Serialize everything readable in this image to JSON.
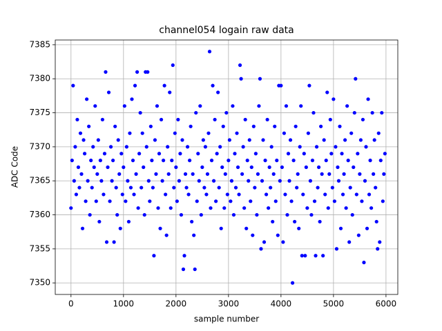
{
  "chart_data": {
    "type": "scatter",
    "title": "channel054 logain raw data",
    "xlabel": "sample number",
    "ylabel": "ADC Code",
    "xlim": [
      -300,
      6225
    ],
    "ylim": [
      7348.3,
      7385.7
    ],
    "xticks": [
      0,
      1000,
      2000,
      3000,
      4000,
      5000,
      6000
    ],
    "yticks": [
      7350,
      7355,
      7360,
      7365,
      7370,
      7375,
      7380,
      7385
    ],
    "grid": true,
    "series": [
      {
        "color": "#0000ff",
        "x": [
          0,
          20,
          40,
          60,
          80,
          100,
          120,
          140,
          160,
          180,
          200,
          220,
          240,
          260,
          280,
          300,
          320,
          340,
          360,
          380,
          400,
          420,
          440,
          460,
          480,
          500,
          520,
          540,
          560,
          580,
          600,
          620,
          640,
          660,
          680,
          700,
          720,
          740,
          760,
          780,
          800,
          820,
          840,
          860,
          880,
          900,
          920,
          940,
          960,
          980,
          1000,
          1020,
          1040,
          1060,
          1080,
          1100,
          1120,
          1140,
          1160,
          1180,
          1200,
          1220,
          1240,
          1260,
          1280,
          1300,
          1320,
          1340,
          1360,
          1380,
          1400,
          1420,
          1440,
          1460,
          1480,
          1500,
          1520,
          1540,
          1560,
          1580,
          1600,
          1620,
          1640,
          1660,
          1680,
          1700,
          1720,
          1740,
          1760,
          1780,
          1800,
          1820,
          1840,
          1860,
          1880,
          1900,
          1920,
          1940,
          1960,
          1980,
          2000,
          2020,
          2040,
          2060,
          2080,
          2100,
          2120,
          2140,
          2160,
          2180,
          2200,
          2220,
          2240,
          2260,
          2280,
          2300,
          2320,
          2340,
          2360,
          2380,
          2400,
          2420,
          2440,
          2460,
          2480,
          2500,
          2520,
          2540,
          2560,
          2580,
          2600,
          2620,
          2640,
          2660,
          2680,
          2700,
          2720,
          2740,
          2760,
          2780,
          2800,
          2820,
          2840,
          2860,
          2880,
          2900,
          2920,
          2940,
          2960,
          2980,
          3000,
          3020,
          3040,
          3060,
          3080,
          3100,
          3120,
          3140,
          3160,
          3180,
          3200,
          3220,
          3240,
          3260,
          3280,
          3300,
          3320,
          3340,
          3360,
          3380,
          3400,
          3420,
          3440,
          3460,
          3480,
          3500,
          3520,
          3540,
          3560,
          3580,
          3600,
          3620,
          3640,
          3660,
          3680,
          3700,
          3720,
          3740,
          3760,
          3780,
          3800,
          3820,
          3840,
          3860,
          3880,
          3900,
          3920,
          3940,
          3960,
          3980,
          4000,
          4020,
          4040,
          4060,
          4080,
          4100,
          4120,
          4140,
          4160,
          4180,
          4200,
          4220,
          4240,
          4260,
          4280,
          4300,
          4320,
          4340,
          4360,
          4380,
          4400,
          4420,
          4440,
          4460,
          4480,
          4500,
          4520,
          4540,
          4560,
          4580,
          4600,
          4620,
          4640,
          4660,
          4680,
          4700,
          4720,
          4740,
          4760,
          4780,
          4800,
          4820,
          4840,
          4860,
          4880,
          4900,
          4920,
          4940,
          4960,
          4980,
          5000,
          5020,
          5040,
          5060,
          5080,
          5100,
          5120,
          5140,
          5160,
          5180,
          5200,
          5220,
          5240,
          5260,
          5280,
          5300,
          5320,
          5340,
          5360,
          5380,
          5400,
          5420,
          5440,
          5460,
          5480,
          5500,
          5520,
          5540,
          5560,
          5580,
          5600,
          5620,
          5640,
          5660,
          5680,
          5700,
          5720,
          5740,
          5760,
          5780,
          5800,
          5820,
          5840,
          5860,
          5880,
          5900,
          5920,
          5940,
          5960,
          5980
        ],
        "values": [
          7361,
          7368,
          7379,
          7365,
          7370,
          7363,
          7374,
          7367,
          7364,
          7372,
          7366,
          7358,
          7371,
          7369,
          7362,
          7377,
          7365,
          7373,
          7360,
          7368,
          7364,
          7370,
          7367,
          7376,
          7362,
          7366,
          7371,
          7359,
          7368,
          7365,
          7374,
          7363,
          7369,
          7381,
          7356,
          7367,
          7378,
          7362,
          7370,
          7365,
          7368,
          7356,
          7373,
          7364,
          7360,
          7371,
          7366,
          7358,
          7369,
          7363,
          7367,
          7376,
          7362,
          7370,
          7365,
          7359,
          7372,
          7364,
          7377,
          7368,
          7363,
          7379,
          7366,
          7381,
          7361,
          7369,
          7375,
          7364,
          7372,
          7367,
          7360,
          7381,
          7370,
          7381,
          7365,
          7362,
          7373,
          7368,
          7364,
          7354,
          7371,
          7366,
          7376,
          7361,
          7369,
          7358,
          7374,
          7365,
          7368,
          7379,
          7363,
          7357,
          7370,
          7366,
          7378,
          7361,
          7368,
          7382,
          7364,
          7372,
          7367,
          7362,
          7374,
          7365,
          7369,
          7360,
          7371,
          7352,
          7354,
          7366,
          7364,
          7370,
          7363,
          7368,
          7373,
          7359,
          7366,
          7357,
          7352,
          7375,
          7362,
          7369,
          7365,
          7376,
          7360,
          7367,
          7371,
          7364,
          7370,
          7363,
          7366,
          7372,
          7384,
          7361,
          7368,
          7379,
          7365,
          7374,
          7362,
          7369,
          7378,
          7364,
          7370,
          7358,
          7367,
          7373,
          7361,
          7366,
          7375,
          7363,
          7368,
          7371,
          7362,
          7365,
          7376,
          7360,
          7369,
          7364,
          7372,
          7367,
          7363,
          7382,
          7380,
          7366,
          7370,
          7361,
          7374,
          7358,
          7368,
          7365,
          7371,
          7362,
          7367,
          7357,
          7373,
          7364,
          7369,
          7360,
          7366,
          7376,
          7380,
          7355,
          7365,
          7371,
          7356,
          7368,
          7363,
          7374,
          7361,
          7367,
          7364,
          7370,
          7359,
          7366,
          7373,
          7362,
          7368,
          7357,
          7379,
          7365,
          7379,
          7367,
          7356,
          7372,
          7363,
          7376,
          7360,
          7369,
          7365,
          7371,
          7362,
          7350,
          7368,
          7359,
          7373,
          7364,
          7366,
          7358,
          7370,
          7376,
          7354,
          7363,
          7369,
          7354,
          7367,
          7361,
          7372,
          7379,
          7365,
          7360,
          7368,
          7375,
          7362,
          7354,
          7370,
          7364,
          7367,
          7359,
          7373,
          7366,
          7354,
          7371,
          7363,
          7368,
          7378,
          7361,
          7366,
          7374,
          7369,
          7364,
          7377,
          7362,
          7370,
          7355,
          7367,
          7365,
          7373,
          7358,
          7369,
          7363,
          7366,
          7371,
          7361,
          7376,
          7368,
          7356,
          7364,
          7372,
          7360,
          7367,
          7375,
          7380,
          7363,
          7369,
          7357,
          7366,
          7371,
          7362,
          7374,
          7353,
          7365,
          7370,
          7358,
          7377,
          7363,
          7368,
          7361,
          7375,
          7366,
          7371,
          7364,
          7359,
          7355,
          7372,
          7356,
          7368,
          7375,
          7362,
          7366,
          7369
        ]
      }
    ]
  }
}
